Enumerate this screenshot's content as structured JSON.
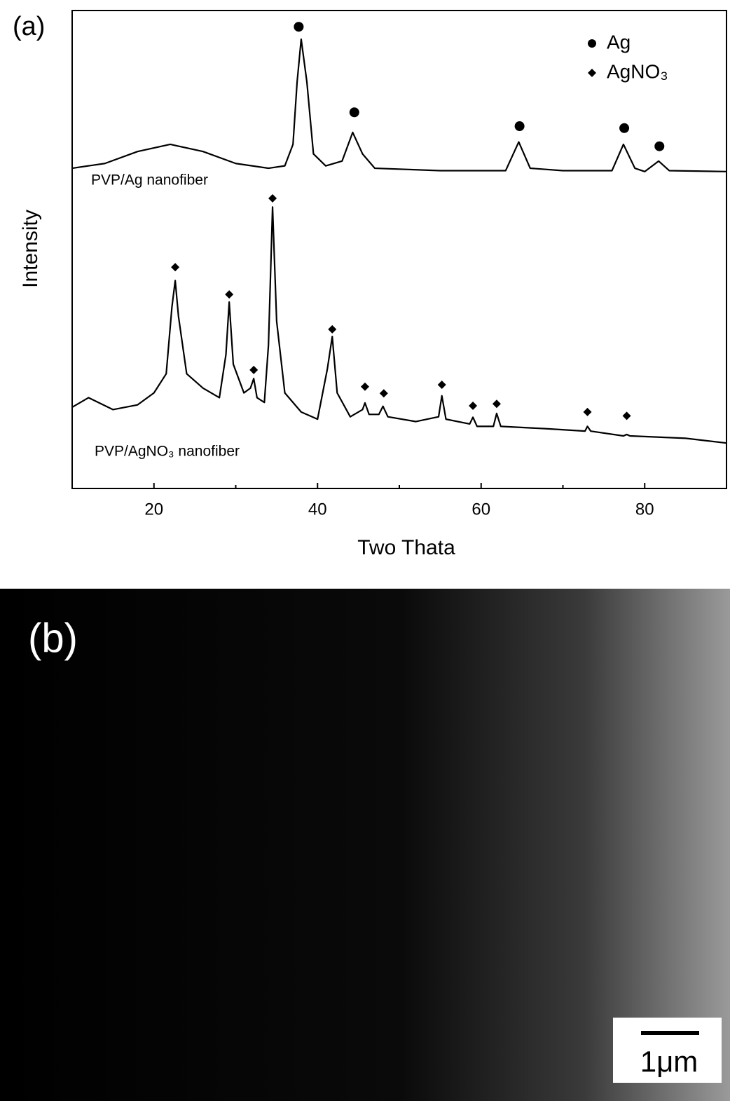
{
  "chart_data": {
    "type": "line",
    "panel_label": "(a)",
    "x_label": "Two Thata",
    "y_label": "Intensity",
    "xlim": [
      10,
      90
    ],
    "xticks": [
      20,
      40,
      60,
      80
    ],
    "x_minor_ticks": [
      30,
      50,
      70
    ],
    "ylim": [
      0,
      100
    ],
    "legend": [
      {
        "label": "Ag",
        "marker": "circle"
      },
      {
        "label": "AgNO₃",
        "marker": "diamond"
      }
    ],
    "series": [
      {
        "name": "PVP/Ag nanofiber",
        "color": "#000000",
        "marker": "circle",
        "x": [
          10,
          14,
          18,
          22,
          26,
          30,
          34,
          36,
          37,
          37.5,
          38,
          38.7,
          39.5,
          41,
          43,
          44.3,
          45.5,
          47,
          55,
          63,
          64.6,
          66,
          70,
          76,
          77.4,
          78.8,
          80,
          81.7,
          83,
          90
        ],
        "values": [
          67,
          68,
          70.5,
          72,
          70.5,
          68,
          67,
          67.5,
          72,
          85,
          94,
          85,
          70,
          67.5,
          68.5,
          74.5,
          70,
          67,
          66.5,
          66.5,
          72.5,
          67,
          66.5,
          66.5,
          72,
          67,
          66.3,
          68.5,
          66.5,
          66.3
        ],
        "peaks": {
          "x": [
            37.7,
            44.5,
            64.7,
            77.5,
            81.8
          ],
          "values": [
            96.6,
            78.7,
            75.8,
            75.4,
            71.6
          ]
        }
      },
      {
        "name": "PVP/AgNO₃ nanofiber",
        "color": "#000000",
        "marker": "diamond",
        "x": [
          10,
          12,
          15,
          18,
          20,
          21.5,
          22.2,
          22.6,
          23,
          24,
          26,
          28,
          28.8,
          29.2,
          29.7,
          31,
          31.8,
          32.2,
          32.6,
          33.5,
          34,
          34.5,
          35,
          36,
          38,
          40,
          41.2,
          41.8,
          42.4,
          44,
          45.5,
          45.8,
          46.3,
          47.5,
          48,
          48.6,
          52,
          54.8,
          55.2,
          55.7,
          58.6,
          59,
          59.5,
          61.5,
          61.9,
          62.4,
          68,
          72.7,
          73,
          73.4,
          77.4,
          77.8,
          78.2,
          85,
          90
        ],
        "values": [
          17,
          19,
          16.5,
          17.5,
          20,
          24,
          38,
          43.5,
          36,
          24,
          21,
          19,
          28,
          39,
          26,
          20,
          21,
          23,
          19,
          18,
          30,
          58.9,
          35,
          20,
          16,
          14.5,
          25,
          31.8,
          20,
          15,
          16.5,
          17.9,
          15.5,
          15.5,
          17.2,
          15,
          14,
          15,
          19.4,
          14.5,
          13.5,
          14.9,
          13,
          13,
          15.7,
          13,
          12.5,
          12,
          13,
          12,
          11,
          11.3,
          11,
          10.5,
          9.5
        ],
        "peaks": {
          "x": [
            22.6,
            29.2,
            32.2,
            34.5,
            41.8,
            45.8,
            48.1,
            55.2,
            59.0,
            61.9,
            73.0,
            77.8
          ],
          "values": [
            46.3,
            40.6,
            24.8,
            60.7,
            33.3,
            21.3,
            19.9,
            21.7,
            17.3,
            17.7,
            16.0,
            15.2
          ]
        }
      }
    ]
  },
  "image": {
    "panel_label": "(b)",
    "scale_bar": "1μm"
  }
}
